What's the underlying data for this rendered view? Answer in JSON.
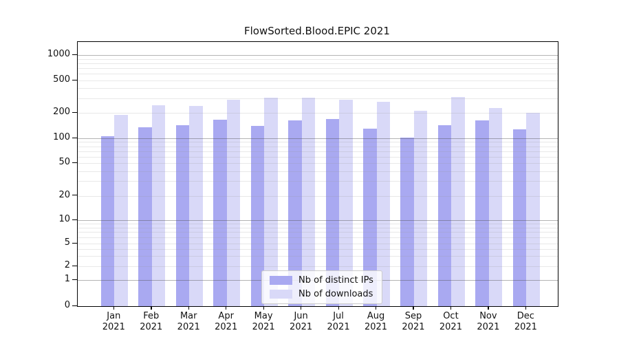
{
  "chart_data": {
    "type": "bar",
    "title": "FlowSorted.Blood.EPIC 2021",
    "categories": [
      "Jan 2021",
      "Feb 2021",
      "Mar 2021",
      "Apr 2021",
      "May 2021",
      "Jun 2021",
      "Jul 2021",
      "Aug 2021",
      "Sep 2021",
      "Oct 2021",
      "Nov 2021",
      "Dec 2021"
    ],
    "series": [
      {
        "name": "Nb of distinct IPs",
        "color": "#a9a9f1",
        "values": [
          105,
          134,
          144,
          165,
          141,
          162,
          170,
          131,
          101,
          142,
          162,
          127
        ]
      },
      {
        "name": "Nb of downloads",
        "color": "#d9d9f8",
        "values": [
          189,
          250,
          242,
          290,
          306,
          305,
          291,
          271,
          214,
          312,
          228,
          200
        ]
      }
    ],
    "xlabel": "",
    "ylabel": "",
    "yscale": "pseudo-log",
    "ytick_labels": [
      "1000",
      "500",
      "200",
      "100",
      "50",
      "20",
      "10",
      "5",
      "2",
      "1",
      "0"
    ],
    "ytick_values": [
      1000,
      500,
      200,
      100,
      50,
      20,
      10,
      5,
      2,
      1,
      0
    ],
    "ylim": [
      0,
      1400
    ],
    "grid": true,
    "legend_position": "lower center"
  }
}
